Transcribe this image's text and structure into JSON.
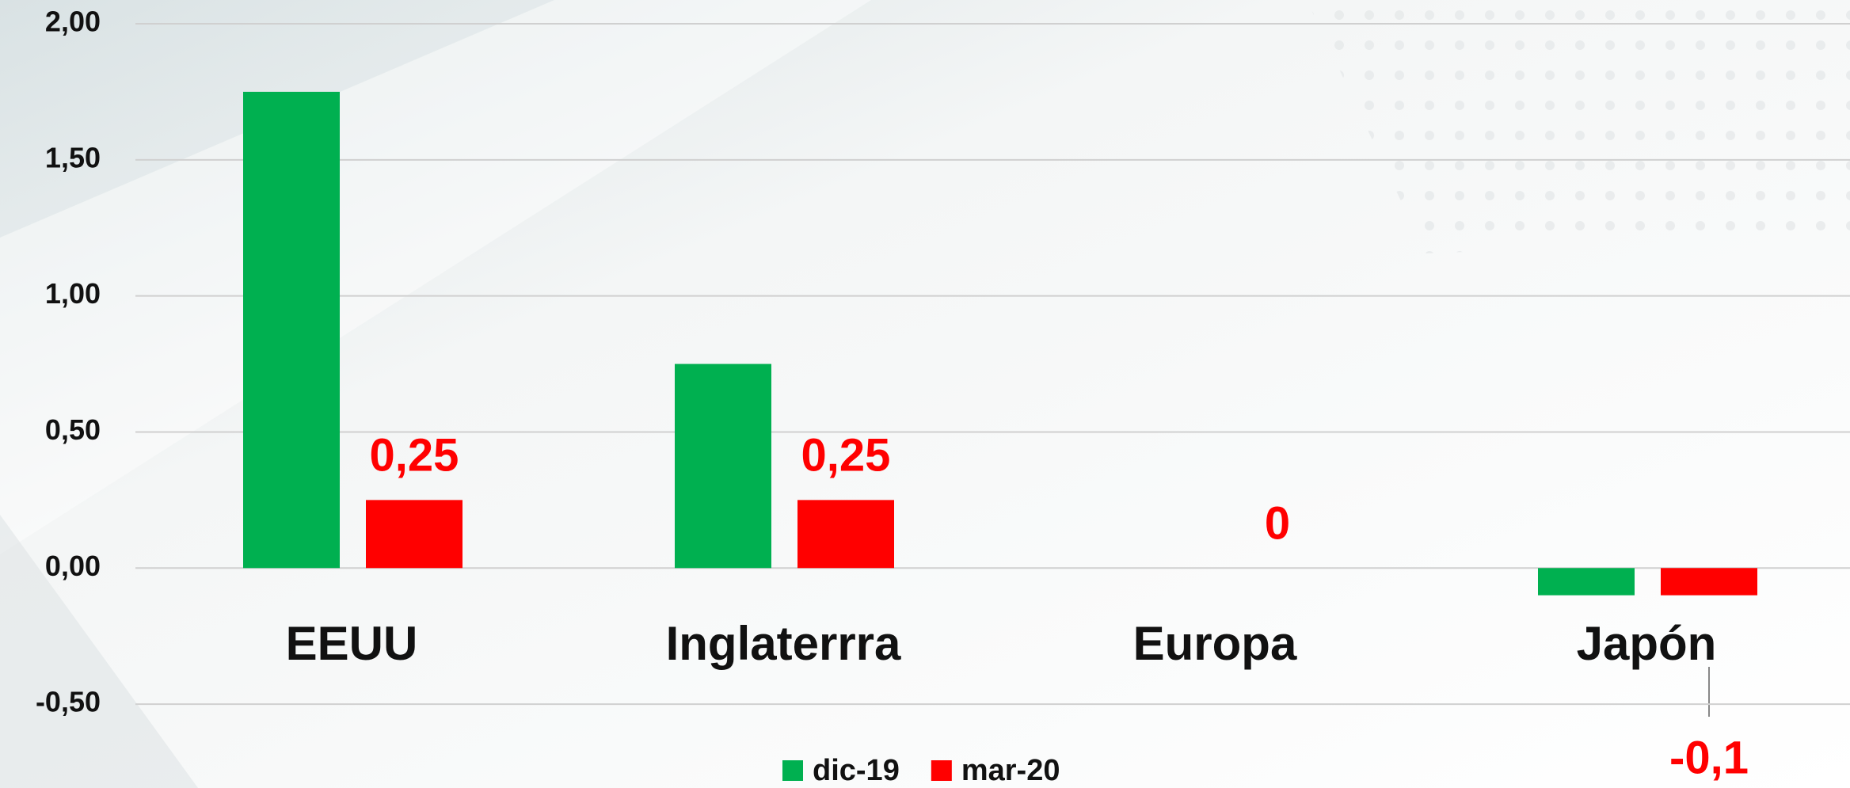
{
  "chart_data": {
    "type": "bar",
    "categories": [
      "EEUU",
      "Inglaterrra",
      "Europa",
      "Japón"
    ],
    "series": [
      {
        "name": "dic-19",
        "color": "#00b050",
        "values": [
          1.75,
          0.75,
          0,
          -0.1
        ]
      },
      {
        "name": "mar-20",
        "color": "#ff0000",
        "values": [
          0.25,
          0.25,
          0,
          -0.1
        ],
        "value_labels": [
          "0,25",
          "0,25",
          "0",
          "-0,1"
        ]
      }
    ],
    "ylim": [
      -0.75,
      2
    ],
    "yticks": [
      {
        "value": 2,
        "label": "2,00"
      },
      {
        "value": 1.5,
        "label": "1,50"
      },
      {
        "value": 1,
        "label": "1,00"
      },
      {
        "value": 0.5,
        "label": "0,50"
      },
      {
        "value": 0,
        "label": "0,00"
      },
      {
        "value": -0.5,
        "label": "-0,50"
      }
    ],
    "grid": true,
    "legend": "bottom"
  }
}
